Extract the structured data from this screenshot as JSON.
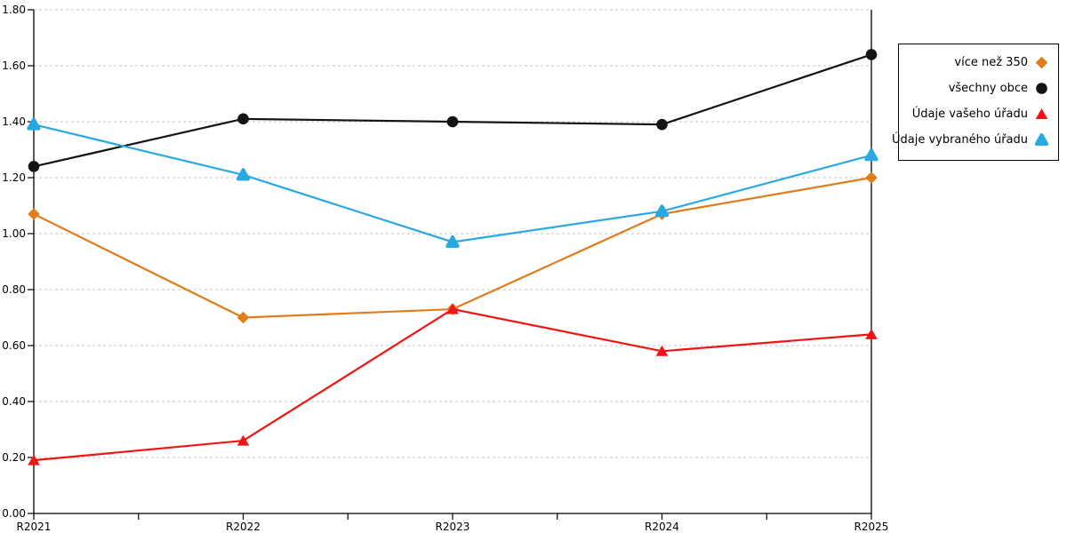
{
  "chart_data": {
    "type": "line",
    "title": "",
    "xlabel": "",
    "ylabel": "",
    "categories": [
      "R2021",
      "R2022",
      "R2023",
      "R2024",
      "R2025"
    ],
    "series": [
      {
        "name": "více než 350",
        "color": "#E07C1A",
        "marker": "diamond",
        "values": [
          1.07,
          0.7,
          0.73,
          1.07,
          1.2
        ]
      },
      {
        "name": "všechny obce",
        "color": "#141414",
        "marker": "circle",
        "values": [
          1.24,
          1.41,
          1.4,
          1.39,
          1.64
        ]
      },
      {
        "name": "Údaje vašeho úřadu",
        "color": "#F01414",
        "marker": "triangle",
        "values": [
          0.19,
          0.26,
          0.73,
          0.58,
          0.64
        ]
      },
      {
        "name": "Údaje vybraného úřadu",
        "color": "#29A8E2",
        "marker": "triangle-rounded",
        "values": [
          1.39,
          1.21,
          0.97,
          1.08,
          1.28
        ]
      }
    ],
    "ylim": [
      0.0,
      1.8
    ],
    "ytick_labels": [
      "0.00",
      "0.20",
      "0.40",
      "0.60",
      "0.80",
      "1.00",
      "1.20",
      "1.40",
      "1.60",
      "1.80"
    ],
    "grid": "horizontal-dashed",
    "legend_position": "right-outside-boxed"
  },
  "colors": {
    "background": "#FFFFFF",
    "axis": "#000000",
    "gridline": "#C4C4C4",
    "tick_label": "#000000"
  }
}
